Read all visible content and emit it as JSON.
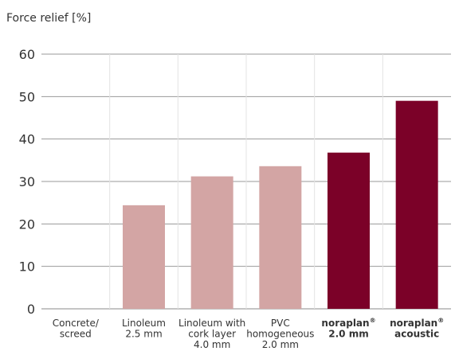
{
  "chart_data": {
    "type": "bar",
    "ylabel": "Force relief [%]",
    "ylim": [
      0,
      60
    ],
    "yticks": [
      0,
      10,
      20,
      30,
      40,
      50,
      60
    ],
    "grid": true,
    "categories": [
      {
        "lines": [
          [
            "Concrete/"
          ],
          [
            "screed"
          ]
        ],
        "value": 0,
        "color": "#d3a5a4"
      },
      {
        "lines": [
          [
            "Linoleum"
          ],
          [
            "2.5 mm"
          ]
        ],
        "value": 24.4,
        "color": "#d3a5a4"
      },
      {
        "lines": [
          [
            "Linoleum with"
          ],
          [
            "cork layer"
          ],
          [
            "4.0 mm"
          ]
        ],
        "value": 31.2,
        "color": "#d3a5a4"
      },
      {
        "lines": [
          [
            "PVC"
          ],
          [
            "homogeneous"
          ],
          [
            "2.0 mm"
          ]
        ],
        "value": 33.6,
        "color": "#d3a5a4"
      },
      {
        "lines": [
          [
            "noraplan",
            "®"
          ],
          [
            "2.0 mm"
          ]
        ],
        "value": 36.8,
        "color": "#7b0128"
      },
      {
        "lines": [
          [
            "noraplan",
            "®"
          ],
          [
            "acoustic"
          ]
        ],
        "value": 49.0,
        "color": "#7b0128"
      }
    ]
  }
}
